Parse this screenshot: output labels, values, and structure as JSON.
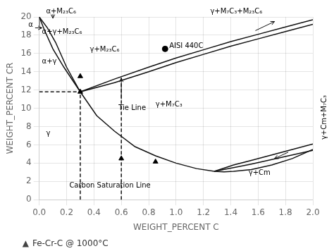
{
  "chart_data": {
    "type": "line",
    "title": "Fe-Cr-C @ 1000°C",
    "xlabel": "WEIGHT_PERCENT C",
    "ylabel": "WEIGHT_PERCENT CR",
    "xlim": [
      0,
      2.0
    ],
    "ylim": [
      0,
      20
    ],
    "xticks": [
      {
        "value": 0,
        "label": "0.0"
      },
      0.2,
      0.4,
      0.6,
      0.8,
      {
        "value": 1.0,
        "label": "1.0"
      },
      1.2,
      1.4,
      1.6,
      1.8,
      {
        "value": 2.0,
        "label": "2.0"
      }
    ],
    "yticks": [
      0,
      2,
      4,
      6,
      8,
      10,
      12,
      14,
      16,
      18,
      20
    ],
    "grid": true,
    "series": [
      {
        "x": [
          0.0,
          0.02,
          0.06,
          0.12,
          0.2,
          0.3,
          0.42,
          0.55,
          0.7,
          0.85,
          1.0,
          1.15,
          1.28,
          1.35,
          1.42,
          1.55,
          1.7,
          1.85,
          2.0
        ],
        "values": [
          20.0,
          19.6,
          18.8,
          17.2,
          14.5,
          11.8,
          9.2,
          7.5,
          5.8,
          4.8,
          4.0,
          3.4,
          3.1,
          3.05,
          3.1,
          3.3,
          3.8,
          4.5,
          5.5
        ],
        "color": "#111111",
        "line_style": "solid"
      },
      {
        "x": [
          0.0,
          0.04,
          0.1,
          0.18,
          0.3
        ],
        "values": [
          20.0,
          18.5,
          16.5,
          14.5,
          11.8
        ],
        "color": "#111111",
        "line_style": "solid"
      },
      {
        "x": [
          0.0,
          0.0
        ],
        "values": [
          20.0,
          19.0
        ],
        "color": "#111111",
        "line_style": "solid"
      },
      {
        "x": [
          0.3,
          0.55,
          0.8,
          1.0,
          1.2,
          1.4,
          1.6,
          1.8,
          2.0
        ],
        "values": [
          11.8,
          13.2,
          14.5,
          15.5,
          16.4,
          17.3,
          18.1,
          18.9,
          19.7
        ],
        "color": "#111111",
        "line_style": "solid"
      },
      {
        "x": [
          0.3,
          0.55,
          0.8,
          1.0,
          1.2,
          1.4,
          1.6,
          1.8,
          2.0
        ],
        "values": [
          11.8,
          12.8,
          14.0,
          15.0,
          15.9,
          16.8,
          17.6,
          18.4,
          19.2
        ],
        "color": "#111111",
        "line_style": "solid"
      },
      {
        "x": [
          1.28,
          1.42,
          1.55,
          1.7,
          1.85,
          2.0
        ],
        "values": [
          3.1,
          3.8,
          4.3,
          4.9,
          5.5,
          6.1
        ],
        "color": "#111111",
        "line_style": "solid"
      },
      {
        "x": [
          1.28,
          1.42,
          1.55,
          1.7,
          1.85,
          2.0
        ],
        "values": [
          3.1,
          3.5,
          3.9,
          4.4,
          4.9,
          5.4
        ],
        "color": "#111111",
        "line_style": "solid"
      },
      {
        "x": [
          0.0,
          0.3
        ],
        "values": [
          11.8,
          11.8
        ],
        "color": "#111111",
        "line_style": "dashed"
      },
      {
        "x": [
          0.3,
          0.3
        ],
        "values": [
          0.0,
          11.8
        ],
        "color": "#111111",
        "line_style": "dashed"
      },
      {
        "x": [
          0.6,
          0.6
        ],
        "values": [
          0.0,
          13.5
        ],
        "color": "#111111",
        "line_style": "dashed"
      },
      {
        "x": [
          0.3
        ],
        "values": [
          11.8
        ],
        "type": "scatter",
        "marker": "triangle",
        "color": "#000000"
      },
      {
        "x": [
          0.3
        ],
        "values": [
          13.5
        ],
        "type": "scatter",
        "marker": "triangle",
        "color": "#000000"
      },
      {
        "x": [
          0.6
        ],
        "values": [
          4.5
        ],
        "type": "scatter",
        "marker": "triangle",
        "color": "#000000"
      },
      {
        "x": [
          0.85
        ],
        "values": [
          4.15
        ],
        "type": "scatter",
        "marker": "triangle",
        "color": "#000000"
      },
      {
        "x": [
          0.92
        ],
        "values": [
          16.5
        ],
        "type": "scatter",
        "marker": "circle",
        "color": "#000000"
      }
    ],
    "arrows": [
      {
        "x": [
          0.6,
          0.6
        ],
        "y": [
          11.0,
          13.3
        ],
        "color": "#111111"
      },
      {
        "x": [
          1.58,
          1.72
        ],
        "y": [
          18.5,
          19.5
        ],
        "color": "#111111"
      },
      {
        "x": [
          1.82,
          1.72
        ],
        "y": [
          5.2,
          4.5
        ],
        "color": "#111111"
      },
      {
        "x": [
          -0.03,
          0.02
        ],
        "y": [
          18.8,
          18.8
        ],
        "color": "#111111"
      },
      {
        "x": [
          0.1,
          0.1
        ],
        "y": [
          20.3,
          19.85
        ],
        "color": "#111111"
      }
    ],
    "annotations": [
      {
        "text": "α+M₂₃C₆",
        "x": 0.05,
        "y": 20.35
      },
      {
        "text": "γ+M₇C₃+M₂₃C₆",
        "x": 1.25,
        "y": 20.35
      },
      {
        "text": "α",
        "x": -0.08,
        "y": 18.9
      },
      {
        "text": "α+γ+M₂₃C₆",
        "x": 0.02,
        "y": 18.15
      },
      {
        "text": "α+γ",
        "x": 0.02,
        "y": 14.9
      },
      {
        "text": "γ",
        "x": 0.05,
        "y": 7.0
      },
      {
        "text": "γ+M₂₃C₆",
        "x": 0.37,
        "y": 16.2
      },
      {
        "text": "γ+M₇C₃",
        "x": 0.85,
        "y": 10.2
      },
      {
        "text": "Tie Line",
        "x": 0.58,
        "y": 9.8
      },
      {
        "text": "Carbon Saturation Line",
        "x": 0.22,
        "y": 1.3
      },
      {
        "text": "AISI 440C",
        "x": 0.95,
        "y": 16.6
      },
      {
        "text": "γ+Cm",
        "x": 1.53,
        "y": 2.7
      },
      {
        "text": "γ+Cm+M₇C₃",
        "x": 2.06,
        "y": 9.0
      },
      {
        "text": "▲",
        "color": "#444444"
      }
    ]
  }
}
